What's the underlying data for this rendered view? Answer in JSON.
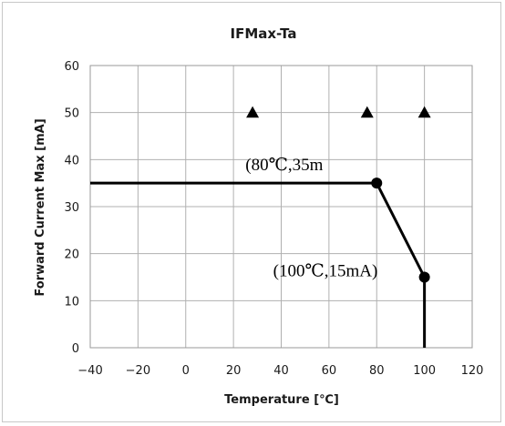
{
  "chart_data": {
    "type": "line",
    "title": "IFMax-Ta",
    "xlabel": "Temperature [℃]",
    "ylabel": "Forward Current Max [mA]",
    "xlim": [
      -40,
      120
    ],
    "ylim": [
      0,
      60
    ],
    "xticks": [
      -40,
      -20,
      0,
      20,
      40,
      60,
      80,
      100,
      120
    ],
    "xtick_labels": [
      "−40",
      "−20",
      "0",
      "20",
      "40",
      "60",
      "80",
      "100",
      "120"
    ],
    "yticks": [
      0,
      10,
      20,
      30,
      40,
      50,
      60
    ],
    "ytick_labels": [
      "0",
      "10",
      "20",
      "30",
      "40",
      "50",
      "60"
    ],
    "grid": true,
    "series": [
      {
        "x": [
          -40,
          80,
          100,
          100
        ],
        "y": [
          35,
          35,
          15,
          0
        ],
        "color": "#000000",
        "markers": [
          {
            "x": 80,
            "y": 35
          },
          {
            "x": 100,
            "y": 15
          }
        ]
      }
    ],
    "triangles": [
      {
        "x": 28,
        "y": 50
      },
      {
        "x": 76,
        "y": 50
      },
      {
        "x": 100,
        "y": 50
      }
    ],
    "annotations": [
      {
        "text": "(80℃,35m",
        "x": 80,
        "y": 35
      },
      {
        "text": "(100℃,15mA)",
        "x": 100,
        "y": 15
      }
    ]
  }
}
